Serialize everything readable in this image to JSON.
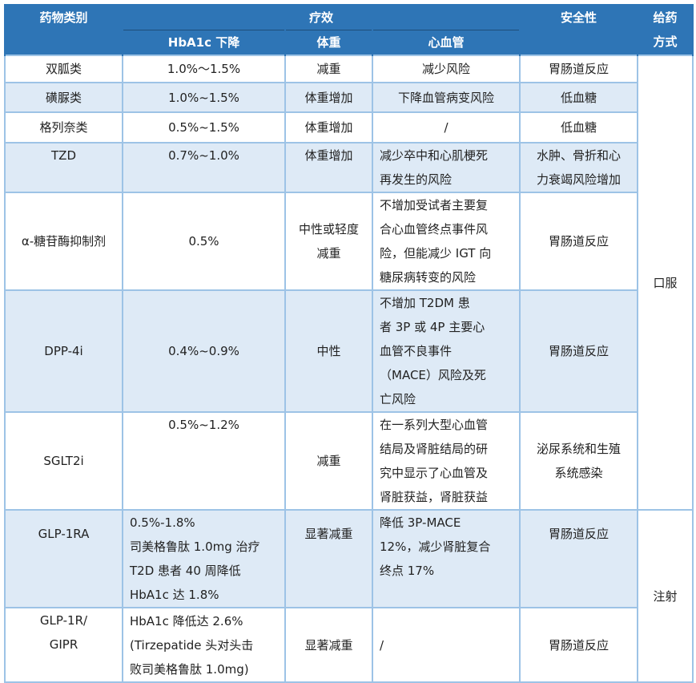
{
  "header": {
    "drug_class": "药物类别",
    "efficacy": "疗效",
    "hba1c": "HbA1c 下降",
    "weight": "体重",
    "cv": "心血管",
    "safety": "安全性",
    "route": "给药\n方式"
  },
  "route": {
    "oral": "口服",
    "injection": "注射"
  },
  "rows": [
    {
      "drug": "双胍类",
      "hba1c": "1.0%～1.5%",
      "weight": "减重",
      "cv": "减少风险",
      "safety": "胃肠道反应"
    },
    {
      "drug": "磺脲类",
      "hba1c": "1.0%~1.5%",
      "weight": "体重增加",
      "cv": "下降血管病变风险",
      "safety": "低血糖"
    },
    {
      "drug": "格列奈类",
      "hba1c": "0.5%~1.5%",
      "weight": "体重增加",
      "cv": "/",
      "safety": "低血糖"
    },
    {
      "drug": "TZD",
      "hba1c": "0.7%~1.0%",
      "weight": "体重增加",
      "cv": "减少卒中和心肌梗死\n再发生的风险",
      "safety": "水肿、骨折和心\n力衰竭风险增加"
    },
    {
      "drug": "α-糖苷酶抑制剂",
      "hba1c": "0.5%",
      "weight": "中性或轻度\n减重",
      "cv": "不增加受试者主要复\n合心血管终点事件风\n险，但能减少 IGT 向\n糖尿病转变的风险",
      "safety": "胃肠道反应"
    },
    {
      "drug": "DPP-4i",
      "hba1c": "0.4%~0.9%",
      "weight": "中性",
      "cv": "不增加 T2DM 患\n者 3P 或 4P 主要心\n血管不良事件\n（MACE）风险及死\n亡风险",
      "safety": "胃肠道反应"
    },
    {
      "drug": "SGLT2i",
      "hba1c": "0.5%~1.2%",
      "weight": "减重",
      "cv": "在一系列大型心血管\n结局及肾脏结局的研\n究中显示了心血管及\n肾脏获益，肾脏获益",
      "safety": "泌尿系统和生殖\n系统感染"
    },
    {
      "drug": "GLP-1RA",
      "hba1c": "0.5%-1.8%\n司美格鲁肽 1.0mg 治疗\nT2D 患者 40 周降低\nHbA1c 达 1.8%",
      "weight": "显著减重",
      "cv": "降低 3P-MACE\n12%，减少肾脏复合\n终点 17%",
      "safety": "胃肠道反应"
    },
    {
      "drug": "GLP-1R/\nGIPR",
      "hba1c": "HbA1c 降低达 2.6%\n(Tirzepatide 头对头击\n败司美格鲁肽 1.0mg)",
      "weight": "显著减重",
      "cv": "/",
      "safety": "胃肠道反应"
    }
  ],
  "colors": {
    "header_bg": "#2E75B6",
    "alt_row_bg": "#DEEAF6",
    "border": "#9DC3E6"
  }
}
